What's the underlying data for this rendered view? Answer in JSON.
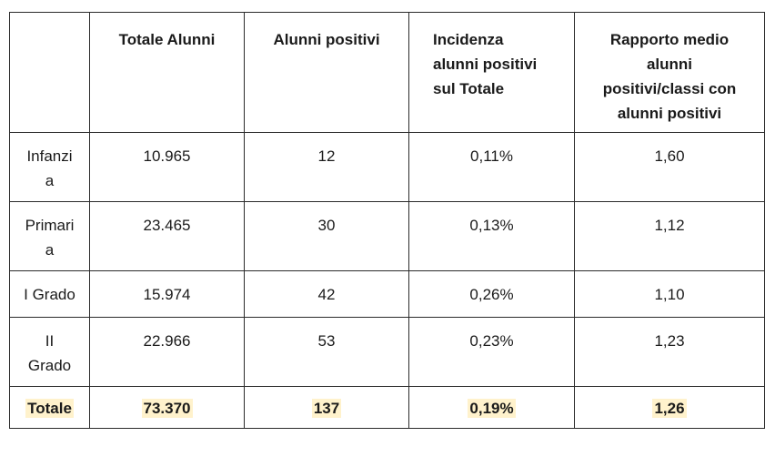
{
  "headers": [
    "",
    "Totale Alunni",
    "Alunni positivi",
    "Incidenza\nalunni  positivi\nsul Totale",
    "Rapporto medio\nalunni\npositivi/classi  con\nalunni positivi"
  ],
  "rows": [
    {
      "label": "Infanzi\na",
      "totale": "10.965",
      "positivi": "12",
      "incidenza": "0,11%",
      "rapporto": "1,60"
    },
    {
      "label": "Primari\na",
      "totale": "23.465",
      "positivi": "30",
      "incidenza": "0,13%",
      "rapporto": "1,12"
    },
    {
      "label": "I Grado",
      "totale": "15.974",
      "positivi": "42",
      "incidenza": "0,26%",
      "rapporto": "1,10"
    },
    {
      "label": "II\nGrado",
      "totale": "22.966",
      "positivi": "53",
      "incidenza": "0,23%",
      "rapporto": "1,23"
    }
  ],
  "total": {
    "label": "Totale",
    "totale": "73.370",
    "positivi": "137",
    "incidenza": "0,19%",
    "rapporto": "1,26"
  },
  "colors": {
    "highlight": "#fff2cc",
    "border": "#2b2b2b",
    "text": "#1a1a1a"
  }
}
